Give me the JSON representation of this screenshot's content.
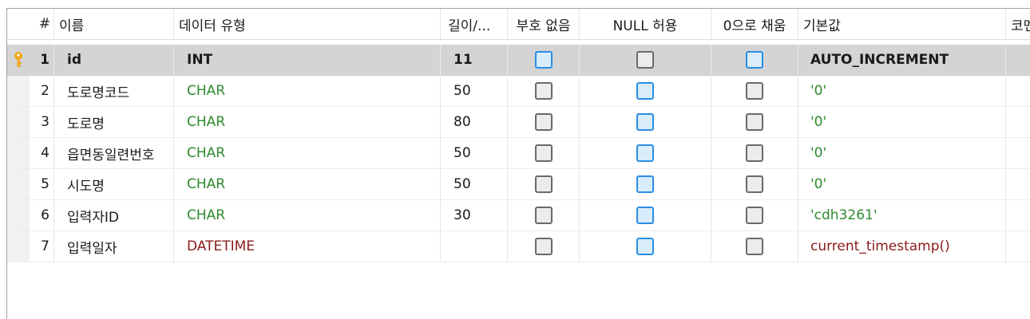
{
  "columns": {
    "num": "#",
    "name": "이름",
    "type": "데이터 유형",
    "length": "길이/...",
    "unsigned": "부호 없음",
    "allow_null": "NULL 허용",
    "zerofill": "0으로 채움",
    "default": "기본값",
    "comment": "코멘트"
  },
  "rows": [
    {
      "num": "1",
      "name": "id",
      "type": "INT",
      "length": "11",
      "unsigned": false,
      "allow_null": false,
      "zerofill": false,
      "default": "AUTO_INCREMENT",
      "comment": "",
      "primary_key": true
    },
    {
      "num": "2",
      "name": "도로명코드",
      "type": "CHAR",
      "length": "50",
      "unsigned": false,
      "allow_null": true,
      "zerofill": false,
      "default": "'0'",
      "comment": ""
    },
    {
      "num": "3",
      "name": "도로명",
      "type": "CHAR",
      "length": "80",
      "unsigned": false,
      "allow_null": true,
      "zerofill": false,
      "default": "'0'",
      "comment": ""
    },
    {
      "num": "4",
      "name": "읍면동일련번호",
      "type": "CHAR",
      "length": "50",
      "unsigned": false,
      "allow_null": true,
      "zerofill": false,
      "default": "'0'",
      "comment": ""
    },
    {
      "num": "5",
      "name": "시도명",
      "type": "CHAR",
      "length": "50",
      "unsigned": false,
      "allow_null": true,
      "zerofill": false,
      "default": "'0'",
      "comment": ""
    },
    {
      "num": "6",
      "name": "입력자ID",
      "type": "CHAR",
      "length": "30",
      "unsigned": false,
      "allow_null": true,
      "zerofill": false,
      "default": "'cdh3261'",
      "comment": ""
    },
    {
      "num": "7",
      "name": "입력일자",
      "type": "DATETIME",
      "length": "",
      "unsigned": false,
      "allow_null": true,
      "zerofill": false,
      "default": "current_timestamp()",
      "comment": ""
    }
  ],
  "colors": {
    "key_icon": "#f0a818",
    "type_char": "#2d8a2d",
    "type_datetime": "#8b1a1a",
    "checked": "#2b8ee5"
  }
}
